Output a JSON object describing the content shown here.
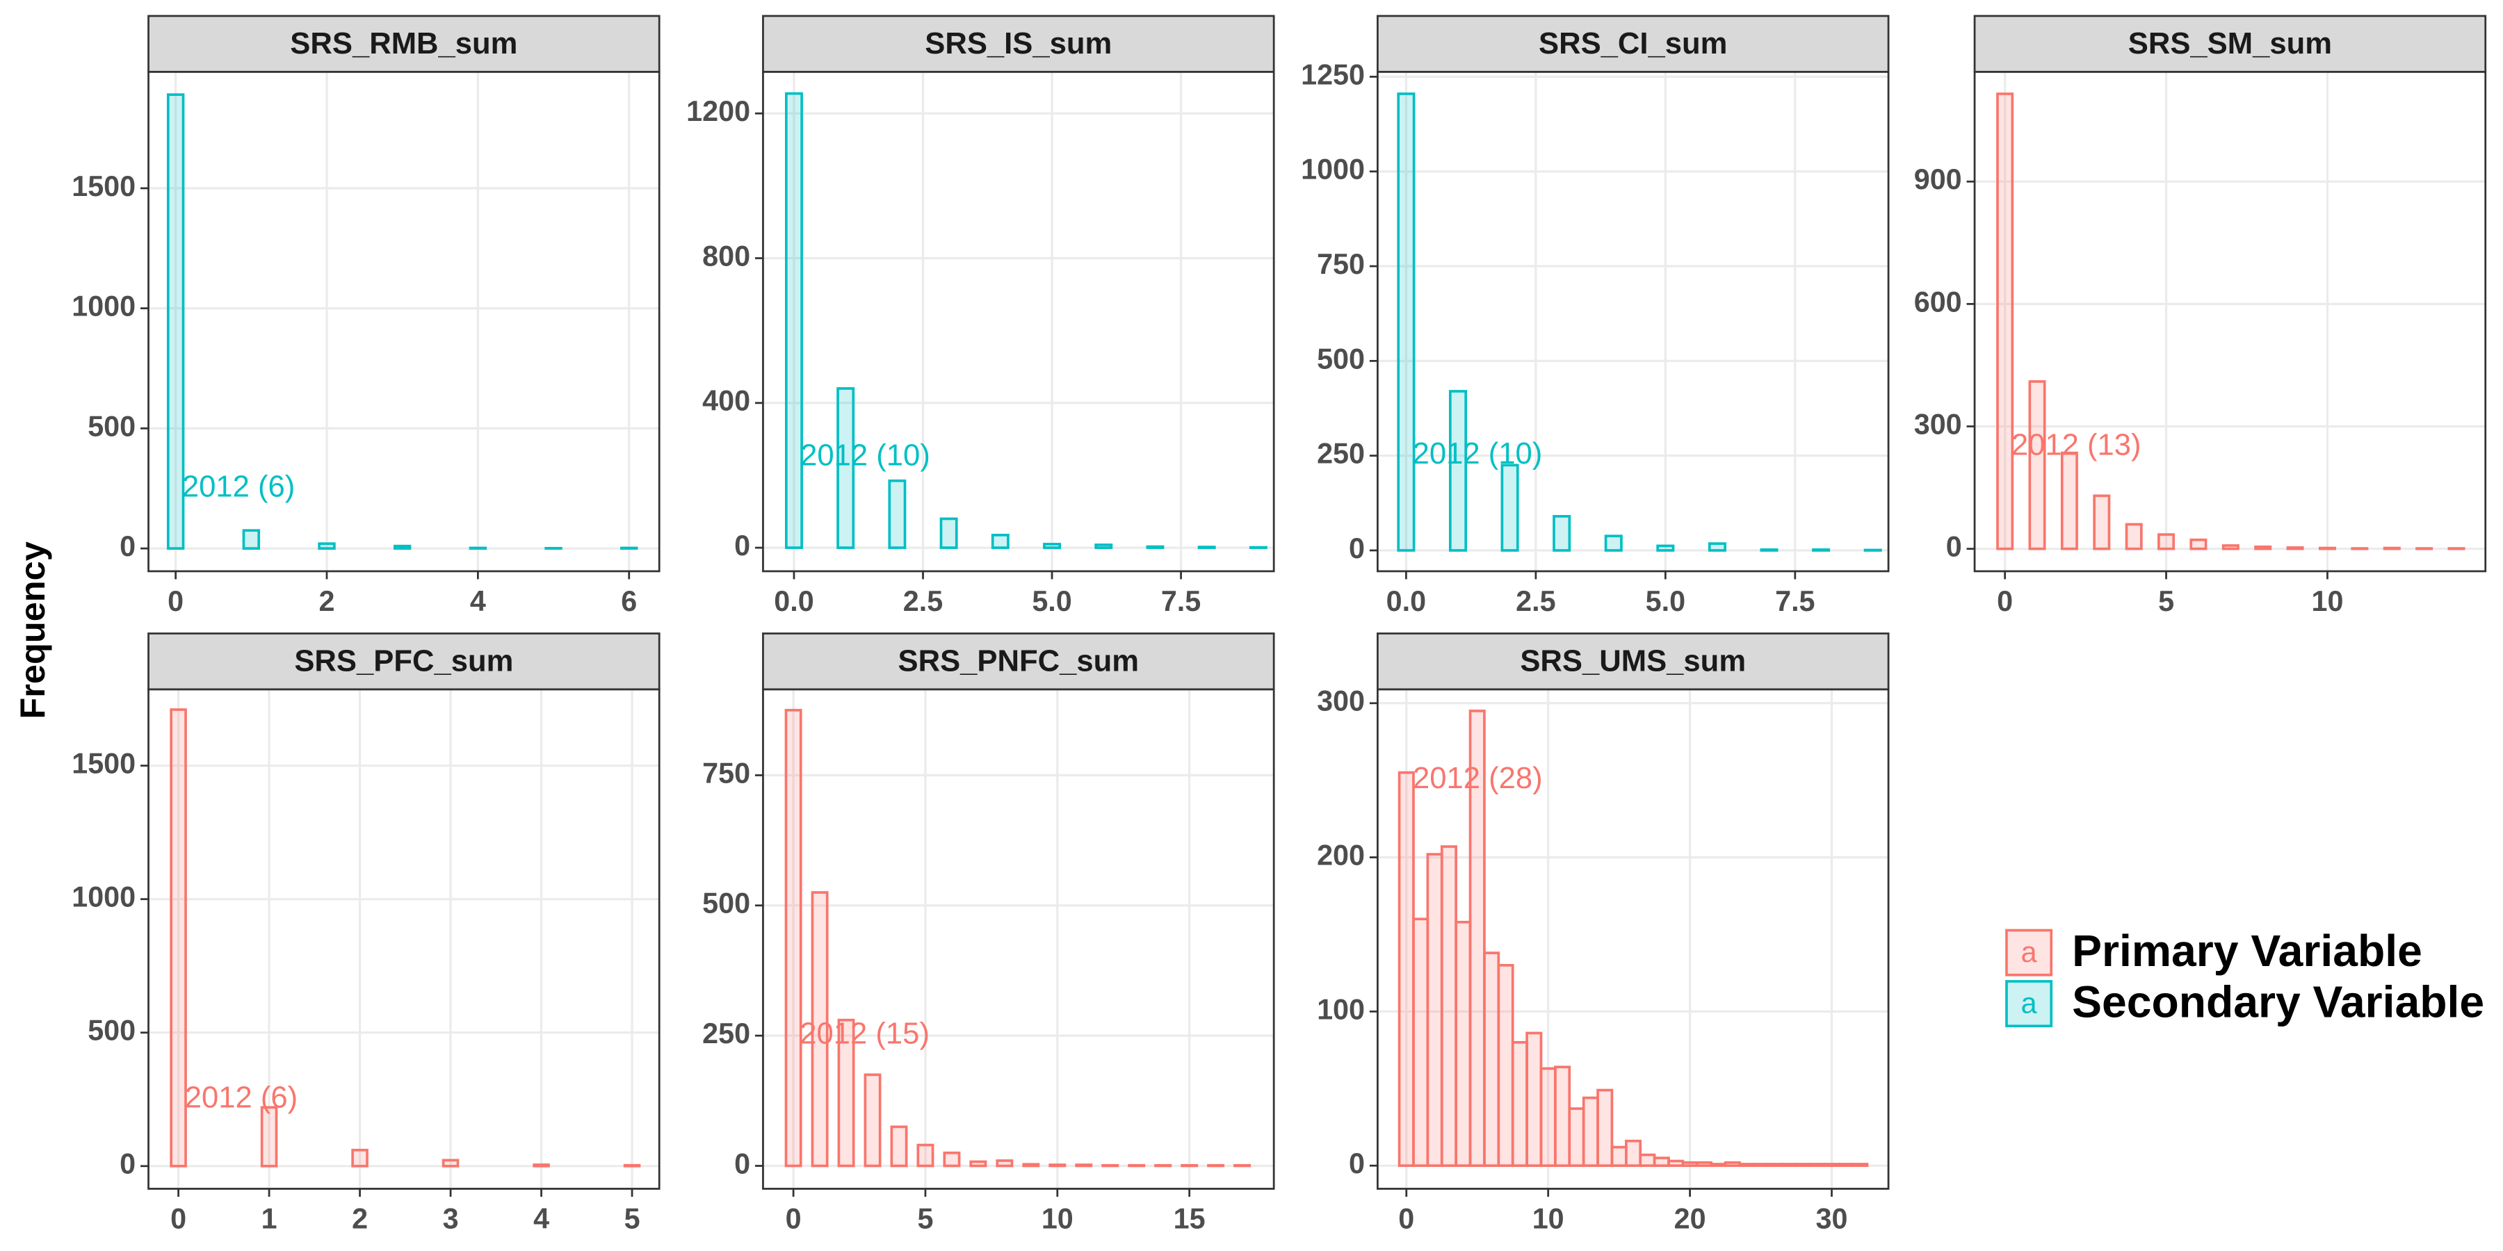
{
  "y_label": "Frequency",
  "legend": {
    "key_text": "a",
    "items": [
      {
        "name": "Primary Variable",
        "color": "#F8766D"
      },
      {
        "name": "Secondary Variable",
        "color": "#00BFC4"
      }
    ]
  },
  "chart_data": [
    {
      "type": "histogram",
      "title": "SRS_RMB_sum",
      "annotation": "2012 (6)",
      "color": "#00BFC4",
      "bins": [
        -0.1,
        0.1,
        0.9,
        1.1,
        1.9,
        2.1,
        2.9,
        3.1,
        3.9,
        4.1,
        4.9,
        5.1,
        5.9,
        6.1
      ],
      "counts": [
        1890,
        0,
        75,
        0,
        20,
        0,
        10,
        0,
        2,
        0,
        1,
        0,
        2
      ],
      "xlim": [
        -0.36,
        6.4
      ],
      "ylim": [
        -95,
        1985
      ],
      "xticks": [
        0,
        2,
        4,
        6
      ],
      "yticks": [
        0,
        500,
        1000,
        1500
      ],
      "grid": true
    },
    {
      "type": "histogram",
      "title": "SRS_IS_sum",
      "annotation": "2012 (10)",
      "color": "#00BFC4",
      "bins": [
        -0.15,
        0.15,
        0.85,
        1.15,
        1.85,
        2.15,
        2.85,
        3.15,
        3.85,
        4.15,
        4.85,
        5.15,
        5.85,
        6.15,
        6.85,
        7.15,
        7.85,
        8.15,
        8.85,
        9.15
      ],
      "counts": [
        1255,
        0,
        440,
        0,
        185,
        0,
        80,
        0,
        35,
        0,
        10,
        0,
        8,
        0,
        3,
        0,
        2,
        0,
        1
      ],
      "xlim": [
        -0.6,
        9.3
      ],
      "ylim": [
        -65,
        1315
      ],
      "xticks": [
        {
          "value": 0,
          "label": "0.0"
        },
        2.5,
        {
          "value": 5,
          "label": "5.0"
        },
        7.5
      ],
      "yticks": [
        0,
        400,
        800,
        1200
      ],
      "grid": true
    },
    {
      "type": "histogram",
      "title": "SRS_CI_sum",
      "annotation": "2012 (10)",
      "color": "#00BFC4",
      "bins": [
        -0.15,
        0.15,
        0.85,
        1.15,
        1.85,
        2.15,
        2.85,
        3.15,
        3.85,
        4.15,
        4.85,
        5.15,
        5.85,
        6.15,
        6.85,
        7.15,
        7.85,
        8.15,
        8.85,
        9.15
      ],
      "counts": [
        1205,
        0,
        420,
        0,
        225,
        0,
        90,
        0,
        38,
        0,
        12,
        0,
        18,
        0,
        2,
        0,
        2,
        0,
        1
      ],
      "xlim": [
        -0.55,
        9.3
      ],
      "ylim": [
        -55,
        1263
      ],
      "xticks": [
        {
          "value": 0,
          "label": "0.0"
        },
        2.5,
        {
          "value": 5,
          "label": "5.0"
        },
        7.5
      ],
      "yticks": [
        0,
        250,
        500,
        750,
        1000,
        1250
      ],
      "grid": true
    },
    {
      "type": "histogram",
      "title": "SRS_SM_sum",
      "annotation": "2012 (13)",
      "color": "#F8766D",
      "bins": [
        -0.23,
        0.23,
        0.77,
        1.23,
        1.77,
        2.23,
        2.77,
        3.23,
        3.77,
        4.23,
        4.77,
        5.23,
        5.77,
        6.23,
        6.77,
        7.23,
        7.77,
        8.23,
        8.77,
        9.23,
        9.77,
        10.23,
        10.77,
        11.23,
        11.77,
        12.23,
        12.77,
        13.23,
        13.77,
        14.23
      ],
      "counts": [
        1115,
        0,
        410,
        0,
        235,
        0,
        130,
        0,
        60,
        0,
        35,
        0,
        22,
        0,
        8,
        0,
        5,
        0,
        3,
        0,
        2,
        0,
        1,
        0,
        2,
        0,
        1,
        0,
        1
      ],
      "xlim": [
        -0.94,
        14.9
      ],
      "ylim": [
        -55,
        1169
      ],
      "xticks": [
        0,
        5,
        10
      ],
      "yticks": [
        0,
        300,
        600,
        900
      ],
      "grid": true
    },
    {
      "type": "histogram",
      "title": "SRS_PFC_sum",
      "annotation": "2012 (6)",
      "color": "#F8766D",
      "bins": [
        -0.08,
        0.08,
        0.92,
        1.08,
        1.92,
        2.08,
        2.92,
        3.08,
        3.92,
        4.08,
        4.92,
        5.08
      ],
      "counts": [
        1710,
        0,
        220,
        0,
        60,
        0,
        22,
        0,
        5,
        0,
        3
      ],
      "xlim": [
        -0.33,
        5.3
      ],
      "ylim": [
        -85,
        1786
      ],
      "xticks": [
        0,
        1,
        2,
        3,
        4,
        5
      ],
      "yticks": [
        0,
        500,
        1000,
        1500
      ],
      "grid": true
    },
    {
      "type": "histogram",
      "title": "SRS_PNFC_sum",
      "annotation": "2012 (15)",
      "color": "#F8766D",
      "bins": [
        -0.28,
        0.28,
        0.72,
        1.28,
        1.72,
        2.28,
        2.72,
        3.28,
        3.72,
        4.28,
        4.72,
        5.28,
        5.72,
        6.28,
        6.72,
        7.28,
        7.72,
        8.28,
        8.72,
        9.28,
        9.72,
        10.28,
        10.72,
        11.28,
        11.72,
        12.28,
        12.72,
        13.28,
        13.72,
        14.28,
        14.72,
        15.28,
        15.72,
        16.28,
        16.72,
        17.28
      ],
      "counts": [
        875,
        0,
        525,
        0,
        280,
        0,
        175,
        0,
        75,
        0,
        40,
        0,
        25,
        0,
        8,
        0,
        10,
        0,
        3,
        0,
        2,
        0,
        2,
        0,
        1,
        0,
        1,
        0,
        1,
        0,
        1,
        0,
        1,
        0,
        1
      ],
      "xlim": [
        -1.15,
        18.2
      ],
      "ylim": [
        -44,
        915
      ],
      "xticks": [
        0,
        5,
        10,
        15
      ],
      "yticks": [
        0,
        250,
        500,
        750
      ],
      "grid": true
    },
    {
      "type": "histogram",
      "title": "SRS_UMS_sum",
      "annotation": "2012 (28)",
      "color": "#F8766D",
      "bins": [
        -0.5,
        0.5,
        1.5,
        2.5,
        3.5,
        4.5,
        5.5,
        6.5,
        7.5,
        8.5,
        9.5,
        10.5,
        11.5,
        12.5,
        13.5,
        14.5,
        15.5,
        16.5,
        17.5,
        18.5,
        19.5,
        20.5,
        21.5,
        22.5,
        23.5,
        24.5,
        25.5,
        26.5,
        27.5,
        28.5,
        29.5,
        30.5,
        31.5,
        32.5
      ],
      "counts": [
        255,
        160,
        202,
        207,
        158,
        295,
        138,
        130,
        80,
        86,
        63,
        64,
        37,
        44,
        49,
        12,
        16,
        7,
        5,
        3,
        2,
        2,
        1,
        2,
        1,
        1,
        1,
        1,
        1,
        1,
        1,
        1,
        1
      ],
      "xlim": [
        -2.03,
        34
      ],
      "ylim": [
        -15,
        309
      ],
      "xticks": [
        0,
        10,
        20,
        30
      ],
      "yticks": [
        0,
        100,
        200,
        300
      ],
      "grid": true
    }
  ]
}
